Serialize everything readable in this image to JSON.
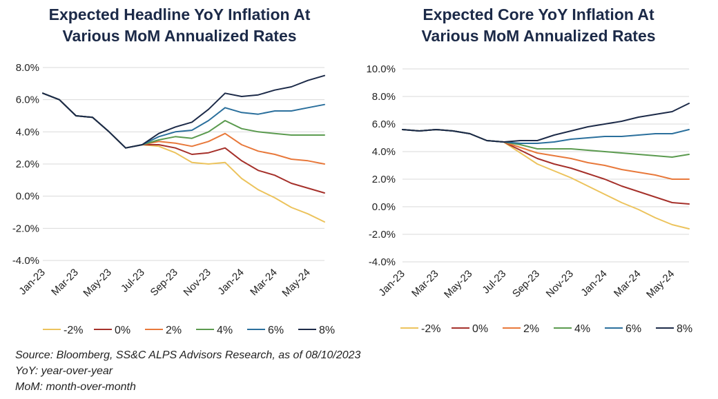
{
  "source": {
    "line1": "Source: Bloomberg, SS&C ALPS Advisors Research, as of 08/10/2023",
    "line2": "YoY: year-over-year",
    "line3": "MoM: month-over-month"
  },
  "chart_data": [
    {
      "type": "line",
      "title": "Expected Headline YoY Inflation At Various MoM Annualized Rates",
      "title_line1": "Expected Headline YoY Inflation At",
      "title_line2": "Various MoM Annualized Rates",
      "x": [
        "Jan-23",
        "Feb-23",
        "Mar-23",
        "Apr-23",
        "May-23",
        "Jun-23",
        "Jul-23",
        "Aug-23",
        "Sep-23",
        "Oct-23",
        "Nov-23",
        "Dec-23",
        "Jan-24",
        "Feb-24",
        "Mar-24",
        "Apr-24",
        "May-24",
        "Jun-24"
      ],
      "x_tick_labels": [
        "Jan-23",
        "Mar-23",
        "May-23",
        "Jul-23",
        "Sep-23",
        "Nov-23",
        "Jan-24",
        "Mar-24",
        "May-24"
      ],
      "ylim": [
        -4,
        8
      ],
      "y_ticks": [
        8,
        6,
        4,
        2,
        0,
        -2,
        -4
      ],
      "y_tick_labels": [
        "8.0%",
        "6.0%",
        "4.0%",
        "2.0%",
        "0.0%",
        "-2.0%",
        "-4.0%"
      ],
      "series": [
        {
          "name": "-2%",
          "color": "#ecc35c",
          "values": [
            6.4,
            6.0,
            5.0,
            4.9,
            4.0,
            3.0,
            3.2,
            3.1,
            2.7,
            2.1,
            2.0,
            2.1,
            1.1,
            0.4,
            -0.1,
            -0.7,
            -1.1,
            -1.6
          ]
        },
        {
          "name": "0%",
          "color": "#a5302a",
          "values": [
            6.4,
            6.0,
            5.0,
            4.9,
            4.0,
            3.0,
            3.2,
            3.2,
            3.0,
            2.6,
            2.7,
            3.0,
            2.2,
            1.6,
            1.3,
            0.8,
            0.5,
            0.2
          ]
        },
        {
          "name": "2%",
          "color": "#e8783a",
          "values": [
            6.4,
            6.0,
            5.0,
            4.9,
            4.0,
            3.0,
            3.2,
            3.4,
            3.3,
            3.1,
            3.4,
            3.9,
            3.2,
            2.8,
            2.6,
            2.3,
            2.2,
            2.0
          ]
        },
        {
          "name": "4%",
          "color": "#5a9a4e",
          "values": [
            6.4,
            6.0,
            5.0,
            4.9,
            4.0,
            3.0,
            3.2,
            3.5,
            3.7,
            3.6,
            4.0,
            4.7,
            4.2,
            4.0,
            3.9,
            3.8,
            3.8,
            3.8
          ]
        },
        {
          "name": "6%",
          "color": "#2a6f9c",
          "values": [
            6.4,
            6.0,
            5.0,
            4.9,
            4.0,
            3.0,
            3.2,
            3.7,
            4.0,
            4.1,
            4.7,
            5.5,
            5.2,
            5.1,
            5.3,
            5.3,
            5.5,
            5.7
          ]
        },
        {
          "name": "8%",
          "color": "#1c2a48",
          "values": [
            6.4,
            6.0,
            5.0,
            4.9,
            4.0,
            3.0,
            3.2,
            3.9,
            4.3,
            4.6,
            5.4,
            6.4,
            6.2,
            6.3,
            6.6,
            6.8,
            7.2,
            7.5
          ]
        }
      ]
    },
    {
      "type": "line",
      "title": "Expected Core YoY Inflation At Various MoM Annualized Rates",
      "title_line1": "Expected Core YoY Inflation At",
      "title_line2": "Various MoM Annualized Rates",
      "x": [
        "Jan-23",
        "Feb-23",
        "Mar-23",
        "Apr-23",
        "May-23",
        "Jun-23",
        "Jul-23",
        "Aug-23",
        "Sep-23",
        "Oct-23",
        "Nov-23",
        "Dec-23",
        "Jan-24",
        "Feb-24",
        "Mar-24",
        "Apr-24",
        "May-24",
        "Jun-24"
      ],
      "x_tick_labels": [
        "Jan-23",
        "Mar-23",
        "May-23",
        "Jul-23",
        "Sep-23",
        "Nov-23",
        "Jan-24",
        "Mar-24",
        "May-24"
      ],
      "ylim": [
        -4,
        10
      ],
      "y_ticks": [
        10,
        8,
        6,
        4,
        2,
        0,
        -2,
        -4
      ],
      "y_tick_labels": [
        "10.0%",
        "8.0%",
        "6.0%",
        "4.0%",
        "2.0%",
        "0.0%",
        "-2.0%",
        "-4.0%"
      ],
      "series": [
        {
          "name": "-2%",
          "color": "#ecc35c",
          "values": [
            5.6,
            5.5,
            5.6,
            5.5,
            5.3,
            4.8,
            4.7,
            3.9,
            3.1,
            2.6,
            2.1,
            1.5,
            0.9,
            0.3,
            -0.2,
            -0.8,
            -1.3,
            -1.6
          ]
        },
        {
          "name": "0%",
          "color": "#a5302a",
          "values": [
            5.6,
            5.5,
            5.6,
            5.5,
            5.3,
            4.8,
            4.7,
            4.1,
            3.5,
            3.1,
            2.8,
            2.4,
            2.0,
            1.5,
            1.1,
            0.7,
            0.3,
            0.2
          ]
        },
        {
          "name": "2%",
          "color": "#e8783a",
          "values": [
            5.6,
            5.5,
            5.6,
            5.5,
            5.3,
            4.8,
            4.7,
            4.3,
            3.9,
            3.7,
            3.5,
            3.2,
            3.0,
            2.7,
            2.5,
            2.3,
            2.0,
            2.0
          ]
        },
        {
          "name": "4%",
          "color": "#5a9a4e",
          "values": [
            5.6,
            5.5,
            5.6,
            5.5,
            5.3,
            4.8,
            4.7,
            4.5,
            4.2,
            4.2,
            4.2,
            4.1,
            4.0,
            3.9,
            3.8,
            3.7,
            3.6,
            3.8
          ]
        },
        {
          "name": "6%",
          "color": "#2a6f9c",
          "values": [
            5.6,
            5.5,
            5.6,
            5.5,
            5.3,
            4.8,
            4.7,
            4.6,
            4.6,
            4.7,
            4.9,
            5.0,
            5.1,
            5.1,
            5.2,
            5.3,
            5.3,
            5.6
          ]
        },
        {
          "name": "8%",
          "color": "#1c2a48",
          "values": [
            5.6,
            5.5,
            5.6,
            5.5,
            5.3,
            4.8,
            4.7,
            4.8,
            4.8,
            5.2,
            5.5,
            5.8,
            6.0,
            6.2,
            6.5,
            6.7,
            6.9,
            7.5
          ]
        }
      ]
    }
  ]
}
